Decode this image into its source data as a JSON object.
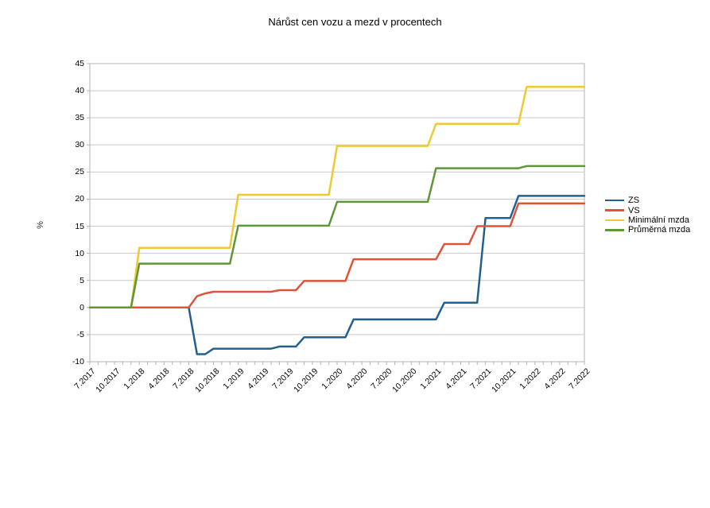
{
  "title": "Nárůst cen vozu a mezd v procentech",
  "chart_data": {
    "type": "line",
    "title": "Nárůst cen vozu a mezd v procentech",
    "xlabel": "",
    "ylabel": "%",
    "ylim": [
      -10,
      45
    ],
    "y_ticks": [
      45,
      40,
      35,
      30,
      25,
      20,
      15,
      10,
      5,
      0,
      -5,
      -10
    ],
    "x_tick_labels": [
      "7.2017",
      "10.2017",
      "1.2018",
      "4.2018",
      "7.2018",
      "10.2018",
      "1.2019",
      "4.2019",
      "7.2019",
      "10.2019",
      "1.2020",
      "4.2020",
      "7.2020",
      "10.2020",
      "1.2021",
      "4.2021",
      "7.2021",
      "10.2021",
      "1.2022",
      "4.2022",
      "7.2022"
    ],
    "months_per_label": 3,
    "grid": "horizontal",
    "legend_position": "right",
    "frame_color": "#b3b3b3",
    "gridline_color": "#c9c9c9",
    "series": [
      {
        "name": "ZS",
        "color": "#24608F",
        "values": [
          0,
          0,
          0,
          0,
          0,
          0,
          0,
          0,
          0,
          0,
          0,
          0,
          0,
          -8.6,
          -8.6,
          -7.6,
          -7.6,
          -7.6,
          -7.6,
          -7.6,
          -7.6,
          -7.6,
          -7.6,
          -7.2,
          -7.2,
          -7.2,
          -5.5,
          -5.5,
          -5.5,
          -5.5,
          -5.5,
          -5.5,
          -2.2,
          -2.2,
          -2.2,
          -2.2,
          -2.2,
          -2.2,
          -2.2,
          -2.2,
          -2.2,
          -2.2,
          -2.2,
          0.9,
          0.9,
          0.9,
          0.9,
          0.9,
          16.5,
          16.5,
          16.5,
          16.5,
          20.6,
          20.6,
          20.6,
          20.6,
          20.6,
          20.6,
          20.6,
          20.6,
          20.6
        ]
      },
      {
        "name": "VS",
        "color": "#DE5439",
        "values": [
          0,
          0,
          0,
          0,
          0,
          0,
          0,
          0,
          0,
          0,
          0,
          0,
          0,
          2.1,
          2.6,
          2.9,
          2.9,
          2.9,
          2.9,
          2.9,
          2.9,
          2.9,
          2.9,
          3.2,
          3.2,
          3.2,
          4.9,
          4.9,
          4.9,
          4.9,
          4.9,
          4.9,
          8.9,
          8.9,
          8.9,
          8.9,
          8.9,
          8.9,
          8.9,
          8.9,
          8.9,
          8.9,
          8.9,
          11.7,
          11.7,
          11.7,
          11.7,
          15,
          15,
          15,
          15,
          15,
          19.2,
          19.2,
          19.2,
          19.2,
          19.2,
          19.2,
          19.2,
          19.2,
          19.2
        ]
      },
      {
        "name": "Minimální mzda",
        "color": "#EFC935",
        "values": [
          0,
          0,
          0,
          0,
          0,
          0,
          11,
          11,
          11,
          11,
          11,
          11,
          11,
          11,
          11,
          11,
          11,
          11,
          20.8,
          20.8,
          20.8,
          20.8,
          20.8,
          20.8,
          20.8,
          20.8,
          20.8,
          20.8,
          20.8,
          20.8,
          29.8,
          29.8,
          29.8,
          29.8,
          29.8,
          29.8,
          29.8,
          29.8,
          29.8,
          29.8,
          29.8,
          29.8,
          33.9,
          33.9,
          33.9,
          33.9,
          33.9,
          33.9,
          33.9,
          33.9,
          33.9,
          33.9,
          33.9,
          40.7,
          40.7,
          40.7,
          40.7,
          40.7,
          40.7,
          40.7,
          40.7
        ]
      },
      {
        "name": "Průměrná mzda",
        "color": "#5F9637",
        "values": [
          0,
          0,
          0,
          0,
          0,
          0,
          8.1,
          8.1,
          8.1,
          8.1,
          8.1,
          8.1,
          8.1,
          8.1,
          8.1,
          8.1,
          8.1,
          8.1,
          15.1,
          15.1,
          15.1,
          15.1,
          15.1,
          15.1,
          15.1,
          15.1,
          15.1,
          15.1,
          15.1,
          15.1,
          19.5,
          19.5,
          19.5,
          19.5,
          19.5,
          19.5,
          19.5,
          19.5,
          19.5,
          19.5,
          19.5,
          19.5,
          25.7,
          25.7,
          25.7,
          25.7,
          25.7,
          25.7,
          25.7,
          25.7,
          25.7,
          25.7,
          25.7,
          26.1,
          26.1,
          26.1,
          26.1,
          26.1,
          26.1,
          26.1,
          26.1
        ]
      }
    ]
  }
}
